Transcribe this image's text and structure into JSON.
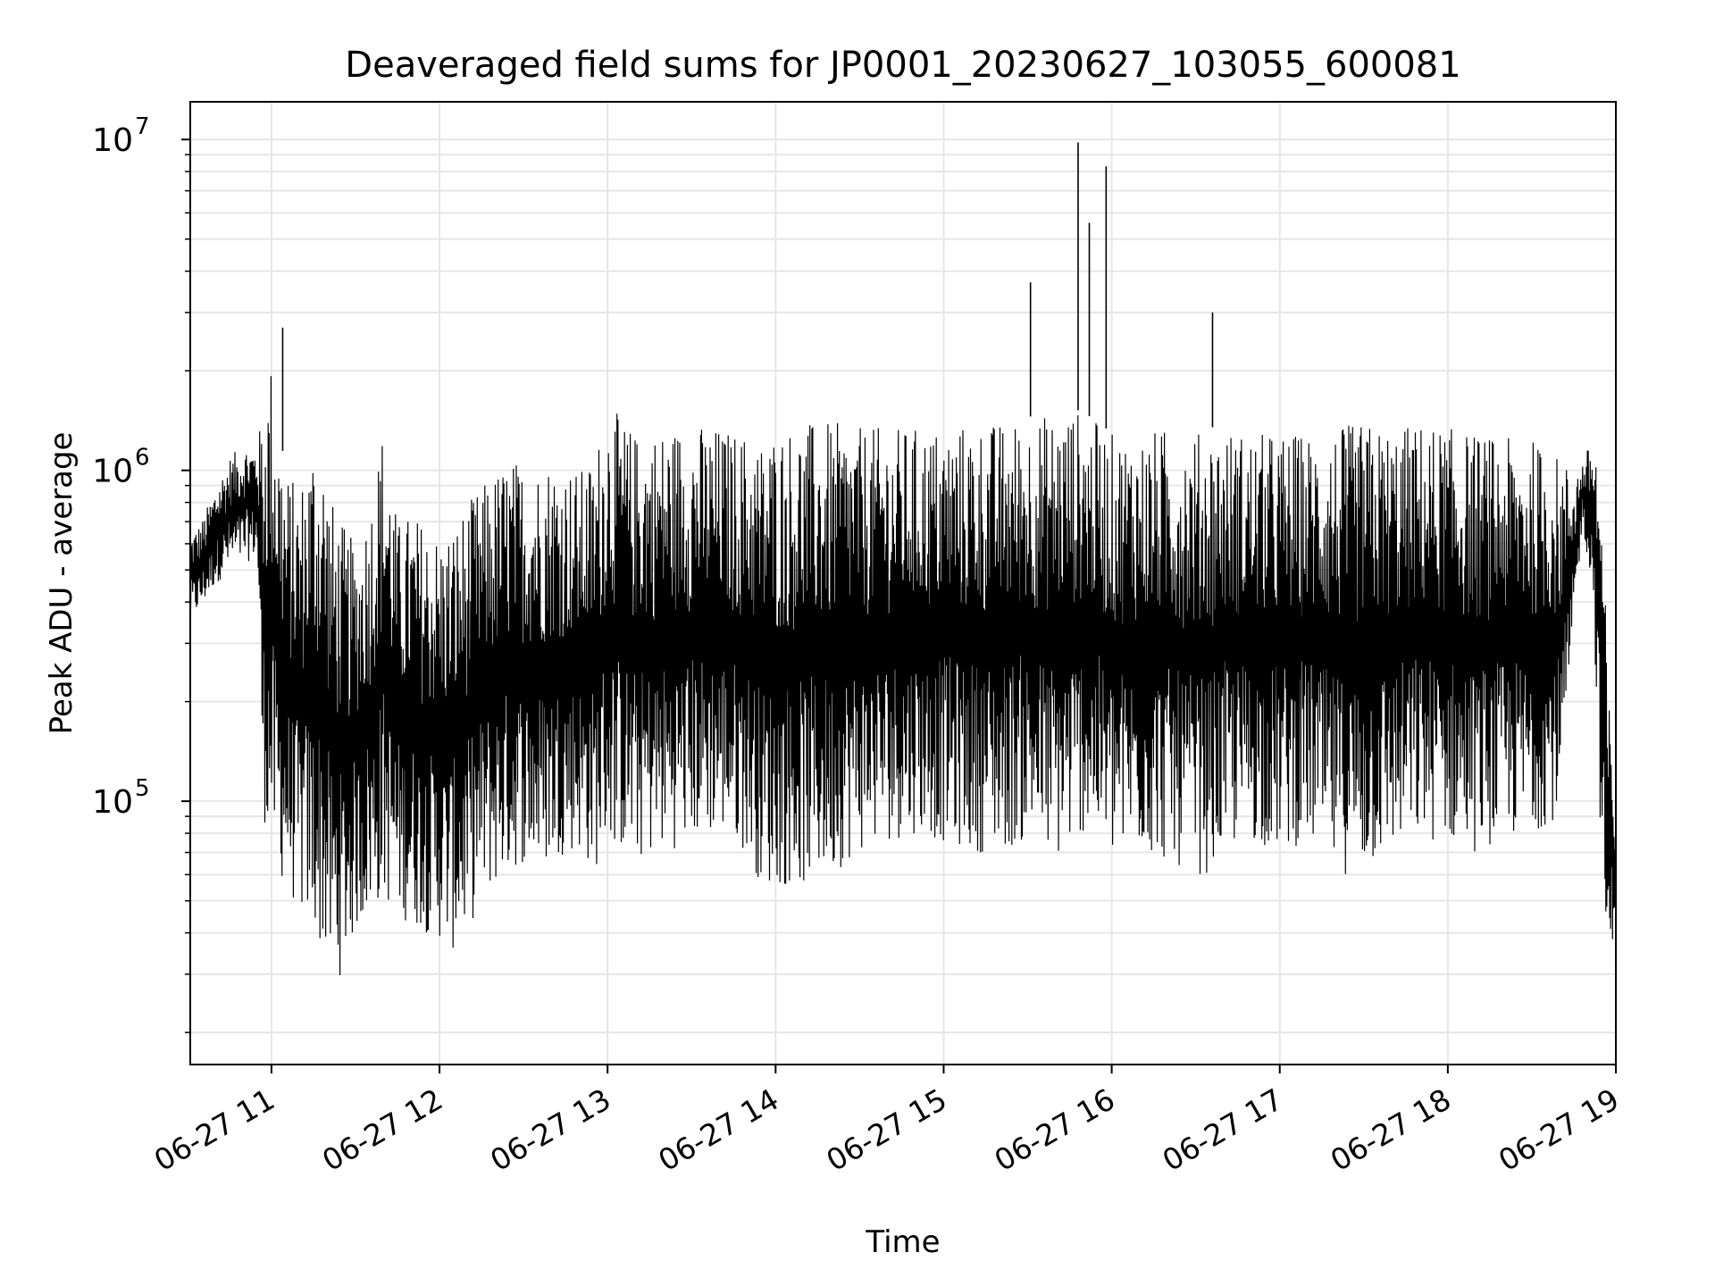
{
  "chart_data": {
    "type": "line",
    "title": "Deaveraged field sums for JP0001_20230627_103055_600081",
    "xlabel": "Time",
    "ylabel": "Peak ADU - average",
    "yscale": "log",
    "ylim": [
      16000,
      13000000
    ],
    "xlim": [
      "2023-06-27 10:31",
      "2023-06-27 19:00"
    ],
    "grid": true,
    "line_color": "#000000",
    "grid_color": "#e6e6e6",
    "x_tick_labels": [
      "06-27 11",
      "06-27 12",
      "06-27 13",
      "06-27 14",
      "06-27 15",
      "06-27 16",
      "06-27 17",
      "06-27 18",
      "06-27 19"
    ],
    "x_tick_values": [
      "2023-06-27 11:00",
      "2023-06-27 12:00",
      "2023-06-27 13:00",
      "2023-06-27 14:00",
      "2023-06-27 15:00",
      "2023-06-27 16:00",
      "2023-06-27 17:00",
      "2023-06-27 18:00",
      "2023-06-27 19:00"
    ],
    "y_tick_labels": [
      {
        "base": "10",
        "exp": "5",
        "value": 100000
      },
      {
        "base": "10",
        "exp": "6",
        "value": 1000000
      },
      {
        "base": "10",
        "exp": "7",
        "value": 10000000
      }
    ],
    "series": [
      {
        "x": [
          "2023-06-27 10:31",
          "2023-06-27 10:35",
          "2023-06-27 10:40",
          "2023-06-27 10:45",
          "2023-06-27 10:50",
          "2023-06-27 10:55",
          "2023-06-27 10:57",
          "2023-06-27 11:00",
          "2023-06-27 11:02",
          "2023-06-27 11:05",
          "2023-06-27 11:10",
          "2023-06-27 11:15",
          "2023-06-27 11:18",
          "2023-06-27 11:22",
          "2023-06-27 11:25",
          "2023-06-27 11:30",
          "2023-06-27 11:35",
          "2023-06-27 11:40",
          "2023-06-27 11:45",
          "2023-06-27 11:50",
          "2023-06-27 11:55",
          "2023-06-27 12:00",
          "2023-06-27 12:05",
          "2023-06-27 12:10",
          "2023-06-27 12:15",
          "2023-06-27 12:20",
          "2023-06-27 12:25",
          "2023-06-27 12:30",
          "2023-06-27 12:35",
          "2023-06-27 12:40",
          "2023-06-27 12:45",
          "2023-06-27 12:50",
          "2023-06-27 12:55",
          "2023-06-27 13:00",
          "2023-06-27 13:10",
          "2023-06-27 13:20",
          "2023-06-27 13:30",
          "2023-06-27 13:40",
          "2023-06-27 13:50",
          "2023-06-27 13:55",
          "2023-06-27 14:00",
          "2023-06-27 14:10",
          "2023-06-27 14:20",
          "2023-06-27 14:30",
          "2023-06-27 14:40",
          "2023-06-27 14:50",
          "2023-06-27 15:00",
          "2023-06-27 15:10",
          "2023-06-27 15:20",
          "2023-06-27 15:30",
          "2023-06-27 15:40",
          "2023-06-27 15:45",
          "2023-06-27 15:50",
          "2023-06-27 15:55",
          "2023-06-27 16:00",
          "2023-06-27 16:10",
          "2023-06-27 16:20",
          "2023-06-27 16:30",
          "2023-06-27 16:35",
          "2023-06-27 16:40",
          "2023-06-27 16:50",
          "2023-06-27 17:00",
          "2023-06-27 17:10",
          "2023-06-27 17:20",
          "2023-06-27 17:30",
          "2023-06-27 17:40",
          "2023-06-27 17:50",
          "2023-06-27 18:00",
          "2023-06-27 18:10",
          "2023-06-27 18:20",
          "2023-06-27 18:30",
          "2023-06-27 18:40",
          "2023-06-27 18:45",
          "2023-06-27 18:48",
          "2023-06-27 18:52",
          "2023-06-27 18:55",
          "2023-06-27 18:57",
          "2023-06-27 19:00"
        ],
        "low": [
          350000,
          380000,
          450000,
          500000,
          520000,
          550000,
          90000,
          70000,
          60000,
          55000,
          45000,
          40000,
          35000,
          28000,
          30000,
          40000,
          45000,
          50000,
          45000,
          42000,
          40000,
          38000,
          35000,
          40000,
          50000,
          55000,
          60000,
          65000,
          60000,
          65000,
          70000,
          70000,
          60000,
          75000,
          65000,
          70000,
          75000,
          80000,
          70000,
          55000,
          55000,
          55000,
          60000,
          70000,
          75000,
          80000,
          75000,
          70000,
          70000,
          75000,
          65000,
          70000,
          80000,
          75000,
          65000,
          70000,
          65000,
          60000,
          60000,
          70000,
          75000,
          70000,
          75000,
          60000,
          60000,
          70000,
          75000,
          75000,
          70000,
          75000,
          80000,
          90000,
          300000,
          700000,
          400000,
          60000,
          25000,
          50000
        ],
        "high": [
          650000,
          700000,
          900000,
          1100000,
          1200000,
          1200000,
          1600000,
          2200000,
          1500000,
          1000000,
          900000,
          1300000,
          1200000,
          800000,
          700000,
          600000,
          800000,
          1400000,
          700000,
          750000,
          700000,
          650000,
          700000,
          800000,
          900000,
          1000000,
          1100000,
          1050000,
          1050000,
          1100000,
          1050000,
          1000000,
          1100000,
          1600000,
          1300000,
          1350000,
          1400000,
          1350000,
          1300000,
          1250000,
          1350000,
          1400000,
          1400000,
          1350000,
          1350000,
          1350000,
          1350000,
          1400000,
          1400000,
          1450000,
          1500000,
          1550000,
          1500000,
          1400000,
          1300000,
          1300000,
          1350000,
          1300000,
          1350000,
          1350000,
          1300000,
          1300000,
          1300000,
          1350000,
          1400000,
          1350000,
          1400000,
          1350000,
          1300000,
          1250000,
          1250000,
          1100000,
          1000000,
          1050000,
          1300000,
          900000,
          250000,
          80000
        ]
      }
    ],
    "spikes": [
      {
        "x": "2023-06-27 11:04",
        "y": 2700000
      },
      {
        "x": "2023-06-27 15:31",
        "y": 3700000
      },
      {
        "x": "2023-06-27 15:48",
        "y": 9800000
      },
      {
        "x": "2023-06-27 15:52",
        "y": 5600000
      },
      {
        "x": "2023-06-27 15:58",
        "y": 8300000
      },
      {
        "x": "2023-06-27 16:36",
        "y": 3000000
      }
    ]
  }
}
